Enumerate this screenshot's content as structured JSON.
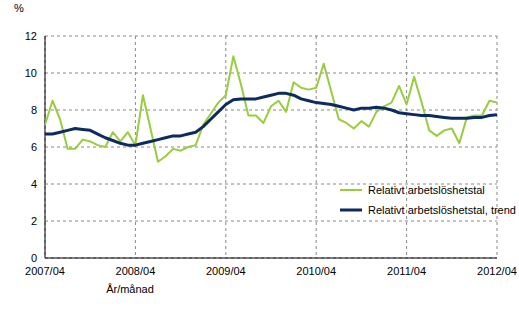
{
  "chart_data": {
    "type": "line",
    "y_label": "%",
    "x_label": "År/månad",
    "categories": [
      "2007/04",
      null,
      null,
      null,
      null,
      null,
      null,
      null,
      null,
      null,
      null,
      null,
      "2008/04",
      null,
      null,
      null,
      null,
      null,
      null,
      null,
      null,
      null,
      null,
      null,
      "2009/04",
      null,
      null,
      null,
      null,
      null,
      null,
      null,
      null,
      null,
      null,
      null,
      "2010/04",
      null,
      null,
      null,
      null,
      null,
      null,
      null,
      null,
      null,
      null,
      null,
      "2011/04",
      null,
      null,
      null,
      null,
      null,
      null,
      null,
      null,
      null,
      null,
      null,
      "2012/04"
    ],
    "series": [
      {
        "name": "Relativt arbetslöshetstal",
        "color": "#99cc3f",
        "values": [
          7.2,
          8.5,
          7.5,
          5.9,
          5.9,
          6.4,
          6.3,
          6.1,
          6.0,
          6.8,
          6.3,
          6.8,
          6.1,
          8.8,
          7.0,
          5.2,
          5.5,
          5.9,
          5.8,
          6.0,
          6.1,
          7.2,
          7.8,
          8.4,
          8.8,
          10.9,
          9.4,
          7.7,
          7.7,
          7.3,
          8.2,
          8.5,
          7.9,
          9.5,
          9.2,
          9.1,
          9.2,
          10.5,
          9.0,
          7.5,
          7.3,
          7.0,
          7.4,
          7.1,
          7.9,
          8.2,
          8.4,
          9.3,
          8.3,
          9.8,
          8.4,
          6.9,
          6.6,
          6.9,
          7.0,
          6.2,
          7.6,
          7.7,
          7.7,
          8.5,
          8.4
        ]
      },
      {
        "name": "Relativt arbetslöshetstal, trend",
        "color": "#0d2b5e",
        "values": [
          6.7,
          6.7,
          6.8,
          6.9,
          7.0,
          6.95,
          6.9,
          6.7,
          6.5,
          6.35,
          6.2,
          6.1,
          6.1,
          6.2,
          6.3,
          6.4,
          6.5,
          6.6,
          6.6,
          6.7,
          6.8,
          7.1,
          7.5,
          7.9,
          8.3,
          8.55,
          8.6,
          8.6,
          8.6,
          8.7,
          8.8,
          8.9,
          8.9,
          8.8,
          8.6,
          8.5,
          8.4,
          8.35,
          8.3,
          8.2,
          8.1,
          8.0,
          8.1,
          8.1,
          8.15,
          8.1,
          8.0,
          7.85,
          7.8,
          7.75,
          7.7,
          7.7,
          7.65,
          7.6,
          7.55,
          7.55,
          7.55,
          7.6,
          7.6,
          7.7,
          7.75
        ]
      }
    ],
    "ylim": [
      0,
      12
    ],
    "yticks": [
      0,
      2,
      4,
      6,
      8,
      10,
      12
    ],
    "grid": true,
    "legend": "lower right"
  }
}
